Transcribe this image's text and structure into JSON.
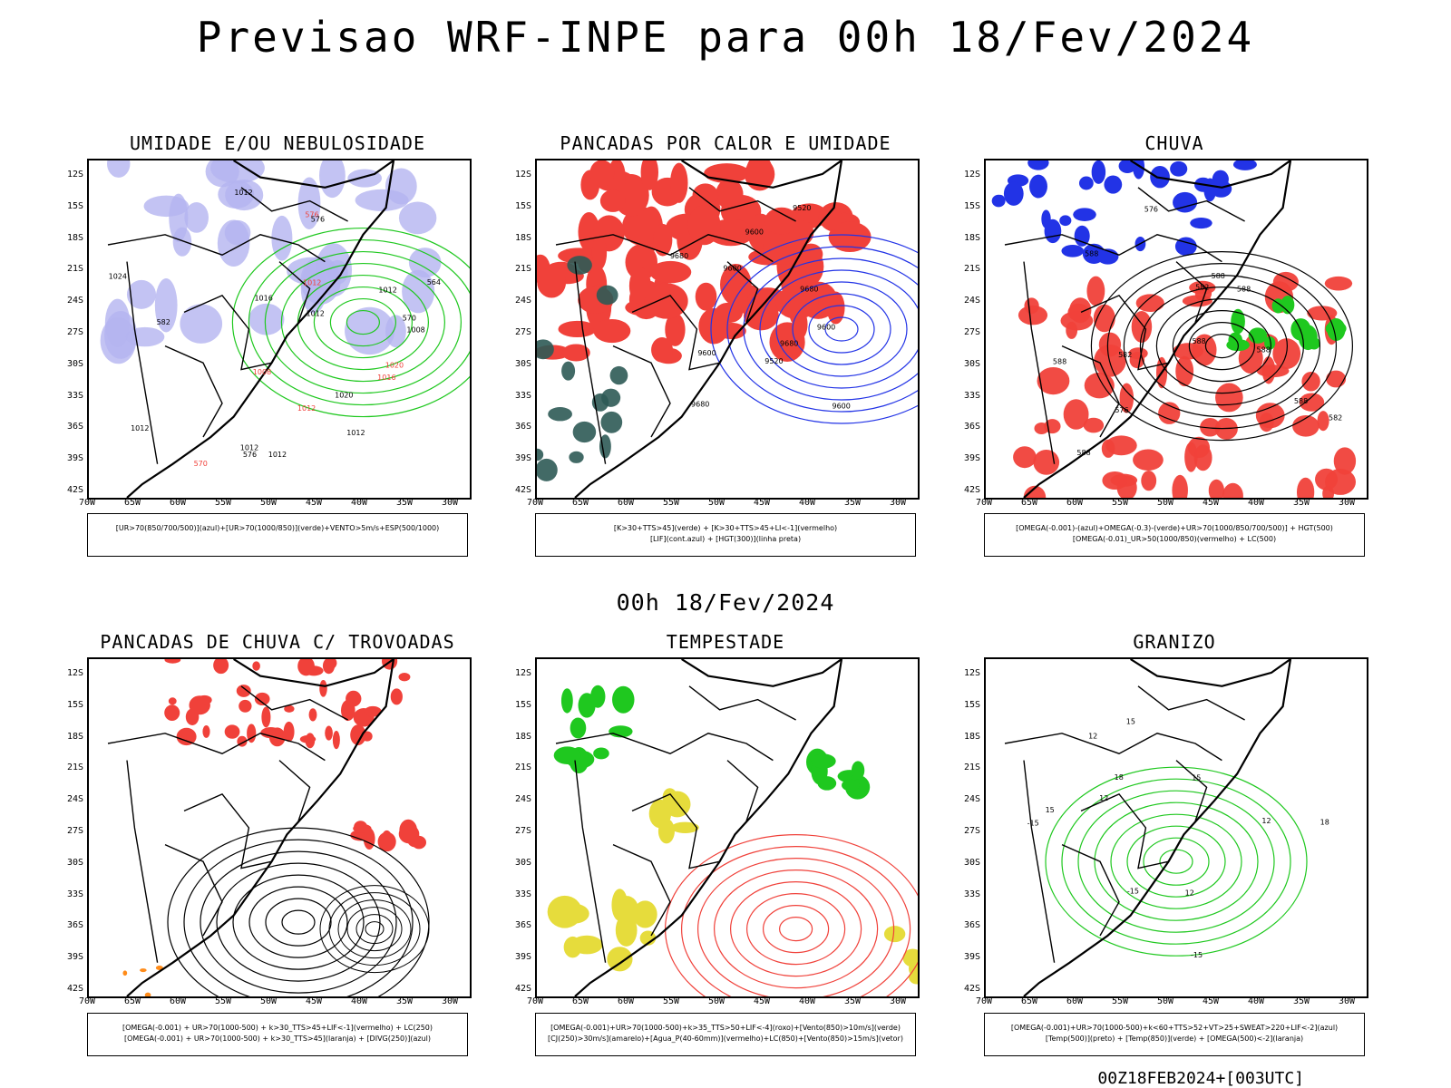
{
  "page": {
    "title": "Previsao WRF-INPE  para 00h 18/Fev/2024",
    "subtitle": "00h 18/Fev/2024",
    "footer": "00Z18FEB2024+[003UTC]"
  },
  "colors": {
    "red": "#f0413a",
    "green": "#1fc81f",
    "blue": "#2233e6",
    "lavender": "#b4b4f0",
    "darkteal": "#2e5a55",
    "yellow": "#e6dc3c",
    "orange": "#ff8c1a",
    "black": "#000000"
  },
  "axes": {
    "lat_ticks": [
      "12S",
      "15S",
      "18S",
      "21S",
      "24S",
      "27S",
      "30S",
      "33S",
      "36S",
      "39S",
      "42S"
    ],
    "lon_ticks": [
      "70W",
      "65W",
      "60W",
      "55W",
      "50W",
      "45W",
      "40W",
      "35W",
      "30W"
    ]
  },
  "chart_data": [
    {
      "type": "heatmap",
      "title": "UMIDADE E/OU NEBULOSIDADE",
      "legend": [
        "[UR>70(850/700/500)](azul)+[UR>70(1000/850)](verde)+VENTO>5m/s+ESP(500/1000)"
      ],
      "contour_labels": [
        "1012",
        "1012",
        "1020",
        "1012",
        "1012",
        "1008",
        "1012",
        "1012",
        "1012",
        "1012",
        "1008",
        "1012",
        "1020",
        "1016",
        "1016",
        "1024",
        "576",
        "576",
        "576",
        "582",
        "570",
        "570",
        "564"
      ],
      "lat_range": [
        "42S",
        "12S"
      ],
      "lon_range": [
        "70W",
        "28W"
      ]
    },
    {
      "type": "heatmap",
      "title": "PANCADAS POR CALOR E UMIDADE",
      "legend": [
        "[K>30+TTS>45](verde) + [K>30+TTS>45+LI<-1](vermelho)",
        "[LIF](cont.azul) + [HGT(300)](linha preta)"
      ],
      "contour_labels": [
        "9680",
        "9680",
        "9600",
        "9680",
        "9680",
        "9520",
        "9600",
        "9600",
        "9520",
        "9600",
        "9600"
      ],
      "lat_range": [
        "42S",
        "12S"
      ],
      "lon_range": [
        "70W",
        "28W"
      ]
    },
    {
      "type": "heatmap",
      "title": "CHUVA",
      "legend": [
        "[OMEGA(-0.001)-(azul)+OMEGA(-0.3)-(verde)+UR>70(1000/850/700/500)] + HGT(500)",
        "[OMEGA(-0.01)_UR>50(1000/850)(vermelho) + LC(500)"
      ],
      "contour_labels": [
        "588",
        "588",
        "588",
        "588",
        "588",
        "588",
        "576",
        "582",
        "582",
        "582",
        "576",
        "588",
        "588"
      ],
      "lat_range": [
        "42S",
        "12S"
      ],
      "lon_range": [
        "70W",
        "28W"
      ]
    },
    {
      "type": "heatmap",
      "title": "PANCADAS DE CHUVA C/ TROVOADAS",
      "legend": [
        "[OMEGA(-0.001) + UR>70(1000-500) + k>30_TTS>45+LIF<-1](vermelho) + LC(250)",
        "[OMEGA(-0.001) + UR>70(1000-500) + k>30_TTS>45](laranja) + [DIVG(250)](azul)"
      ],
      "contour_labels": [],
      "lat_range": [
        "42S",
        "12S"
      ],
      "lon_range": [
        "70W",
        "28W"
      ]
    },
    {
      "type": "heatmap",
      "title": "TEMPESTADE",
      "legend": [
        "[OMEGA(-0.001)+UR>70(1000-500)+k>35_TTS>50+LIF<-4](roxo)+[Vento(850)>10m/s](verde)",
        "[CJ(250)>30m/s](amarelo)+[Agua_P(40-60mm)](vermelho)+LC(850)+[Vento(850)>15m/s](vetor)"
      ],
      "contour_labels": [],
      "lat_range": [
        "42S",
        "12S"
      ],
      "lon_range": [
        "70W",
        "28W"
      ]
    },
    {
      "type": "heatmap",
      "title": "GRANIZO",
      "legend": [
        "[OMEGA(-0.001)+UR>70(1000-500)+k<60+TTS>52+VT>25+SWEAT>220+LIF<-2](azul)",
        "[Temp(500)](preto) + [Temp(850)](verde) + [OMEGA(500)<-2](laranja)"
      ],
      "contour_labels": [
        "-15",
        "-15",
        "-15",
        "15",
        "15",
        "15",
        "18",
        "18",
        "12",
        "12",
        "12",
        "12"
      ],
      "lat_range": [
        "42S",
        "12S"
      ],
      "lon_range": [
        "70W",
        "28W"
      ]
    }
  ]
}
